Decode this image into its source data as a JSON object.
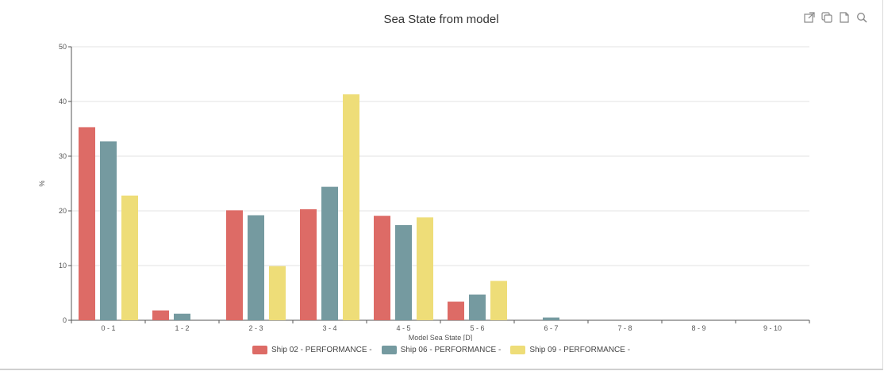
{
  "toolbar": {
    "icons": [
      "external-link-icon",
      "copy-icon",
      "document-icon",
      "search-icon"
    ]
  },
  "chart_data": {
    "type": "bar",
    "title": "Sea State from model",
    "xlabel": "Model Sea State [D]",
    "ylabel": "%",
    "ylim": [
      0,
      50
    ],
    "yticks": [
      0,
      10,
      20,
      30,
      40,
      50
    ],
    "grid": true,
    "legend_position": "bottom-center",
    "categories": [
      "0 - 1",
      "1 - 2",
      "2 - 3",
      "3 - 4",
      "4 - 5",
      "5 - 6",
      "6 - 7",
      "7 - 8",
      "8 - 9",
      "9 - 10"
    ],
    "series": [
      {
        "name": "Ship 02 - PERFORMANCE -",
        "color": "#dd6b66",
        "values": [
          35.3,
          1.8,
          20.1,
          20.3,
          19.1,
          3.4,
          0,
          0,
          0,
          0
        ]
      },
      {
        "name": "Ship 06 - PERFORMANCE -",
        "color": "#759aa0",
        "values": [
          32.7,
          1.2,
          19.2,
          24.4,
          17.4,
          4.7,
          0.5,
          0,
          0,
          0
        ]
      },
      {
        "name": "Ship 09 - PERFORMANCE -",
        "color": "#eedd78",
        "values": [
          22.8,
          0,
          9.9,
          41.3,
          18.8,
          7.2,
          0,
          0,
          0,
          0
        ]
      }
    ]
  }
}
